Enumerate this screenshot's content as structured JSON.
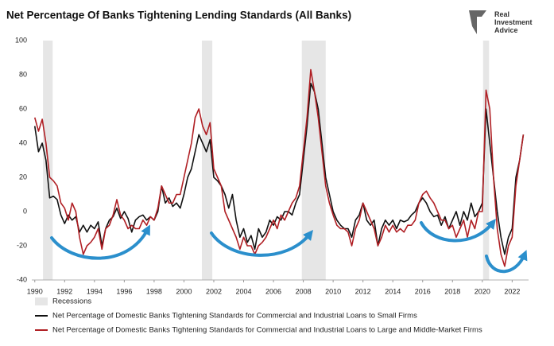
{
  "chart_data": {
    "type": "line",
    "title": "Net Percentage Of Banks Tightening Lending Standards (All Banks)",
    "logo": [
      "Real",
      "Investment",
      "Advice"
    ],
    "recession_label": "Recessions",
    "recession_color": "#e6e6e6",
    "recessions": [
      [
        1990.55,
        1991.2
      ],
      [
        2001.2,
        2001.9
      ],
      [
        2007.9,
        2009.5
      ],
      [
        2020.05,
        2020.45
      ]
    ],
    "xlim": [
      1989.8,
      2023.1
    ],
    "xticks": [
      1990,
      1992,
      1994,
      1996,
      1998,
      2000,
      2002,
      2004,
      2006,
      2008,
      2010,
      2012,
      2014,
      2016,
      2018,
      2020,
      2022
    ],
    "ylim": [
      -40,
      100
    ],
    "yticks": [
      -40,
      -20,
      0,
      20,
      40,
      60,
      80,
      100
    ],
    "grid": false,
    "x": [
      1990,
      1990.25,
      1990.5,
      1990.75,
      1991,
      1991.25,
      1991.5,
      1991.75,
      1992,
      1992.25,
      1992.5,
      1992.75,
      1993,
      1993.25,
      1993.5,
      1993.75,
      1994,
      1994.25,
      1994.5,
      1994.75,
      1995,
      1995.25,
      1995.5,
      1995.75,
      1996,
      1996.25,
      1996.5,
      1996.75,
      1997,
      1997.25,
      1997.5,
      1997.75,
      1998,
      1998.25,
      1998.5,
      1998.75,
      1999,
      1999.25,
      1999.5,
      1999.75,
      2000,
      2000.25,
      2000.5,
      2000.75,
      2001,
      2001.25,
      2001.5,
      2001.75,
      2002,
      2002.25,
      2002.5,
      2002.75,
      2003,
      2003.25,
      2003.5,
      2003.75,
      2004,
      2004.25,
      2004.5,
      2004.75,
      2005,
      2005.25,
      2005.5,
      2005.75,
      2006,
      2006.25,
      2006.5,
      2006.75,
      2007,
      2007.25,
      2007.5,
      2007.75,
      2008,
      2008.25,
      2008.5,
      2008.75,
      2009,
      2009.25,
      2009.5,
      2009.75,
      2010,
      2010.25,
      2010.5,
      2010.75,
      2011,
      2011.25,
      2011.5,
      2011.75,
      2012,
      2012.25,
      2012.5,
      2012.75,
      2013,
      2013.25,
      2013.5,
      2013.75,
      2014,
      2014.25,
      2014.5,
      2014.75,
      2015,
      2015.25,
      2015.5,
      2015.75,
      2016,
      2016.25,
      2016.5,
      2016.75,
      2017,
      2017.25,
      2017.5,
      2017.75,
      2018,
      2018.25,
      2018.5,
      2018.75,
      2019,
      2019.25,
      2019.5,
      2019.75,
      2020,
      2020.25,
      2020.5,
      2020.75,
      2021,
      2021.25,
      2021.5,
      2021.75,
      2022,
      2022.25,
      2022.5,
      2022.75
    ],
    "series": [
      {
        "name": "Net Percentage of Domestic Banks Tightening Standards for Commercial and Industrial Loans to Small Firms",
        "color": "#111111",
        "values": [
          50,
          35,
          40,
          30,
          8,
          9,
          7,
          -2,
          -7,
          -2,
          -5,
          -3,
          -12,
          -8,
          -12,
          -8,
          -10,
          -6,
          -20,
          -10,
          -5,
          -3,
          2,
          -4,
          0,
          -4,
          -12,
          -5,
          -3,
          -2,
          -5,
          -3,
          -5,
          0,
          15,
          5,
          8,
          3,
          5,
          2,
          10,
          20,
          25,
          35,
          45,
          40,
          35,
          42,
          20,
          18,
          15,
          10,
          2,
          10,
          -5,
          -15,
          -10,
          -18,
          -14,
          -22,
          -10,
          -15,
          -12,
          -5,
          -8,
          -3,
          -5,
          0,
          0,
          -2,
          5,
          10,
          30,
          50,
          75,
          70,
          60,
          40,
          20,
          10,
          0,
          -5,
          -8,
          -10,
          -10,
          -15,
          -5,
          -2,
          5,
          -5,
          -8,
          -5,
          -20,
          -10,
          -5,
          -8,
          -5,
          -10,
          -5,
          -6,
          -5,
          -2,
          0,
          5,
          8,
          5,
          0,
          -3,
          -2,
          -8,
          -3,
          -10,
          -5,
          0,
          -8,
          0,
          -5,
          5,
          -3,
          0,
          5,
          60,
          40,
          20,
          0,
          -15,
          -25,
          -15,
          -10,
          20,
          30,
          45
        ]
      },
      {
        "name": "Net Percentage of Domestic Banks Tightening Standards for Commercial and Industrial Loans to Large and Middle-Market Firms",
        "color": "#b01f24",
        "values": [
          55,
          47,
          54,
          40,
          20,
          18,
          15,
          5,
          2,
          -5,
          5,
          0,
          -15,
          -25,
          -20,
          -18,
          -15,
          -10,
          -22,
          -10,
          -8,
          -2,
          7,
          -2,
          -5,
          -10,
          -8,
          -10,
          -10,
          -5,
          -8,
          -3,
          -5,
          2,
          15,
          10,
          5,
          5,
          10,
          10,
          20,
          30,
          40,
          55,
          60,
          50,
          45,
          52,
          25,
          20,
          15,
          0,
          -5,
          -10,
          -15,
          -22,
          -15,
          -20,
          -20,
          -25,
          -20,
          -18,
          -15,
          -10,
          -5,
          -10,
          -2,
          -5,
          0,
          5,
          8,
          15,
          35,
          55,
          83,
          70,
          55,
          35,
          15,
          5,
          -2,
          -8,
          -10,
          -10,
          -12,
          -20,
          -10,
          -5,
          5,
          0,
          -5,
          -10,
          -20,
          -15,
          -8,
          -12,
          -8,
          -12,
          -10,
          -12,
          -8,
          -8,
          -5,
          5,
          10,
          12,
          8,
          5,
          0,
          -5,
          -5,
          -10,
          -8,
          -15,
          -10,
          -5,
          -15,
          -5,
          -10,
          0,
          0,
          71,
          60,
          20,
          -10,
          -25,
          -32,
          -20,
          -15,
          15,
          30,
          45
        ]
      }
    ]
  }
}
